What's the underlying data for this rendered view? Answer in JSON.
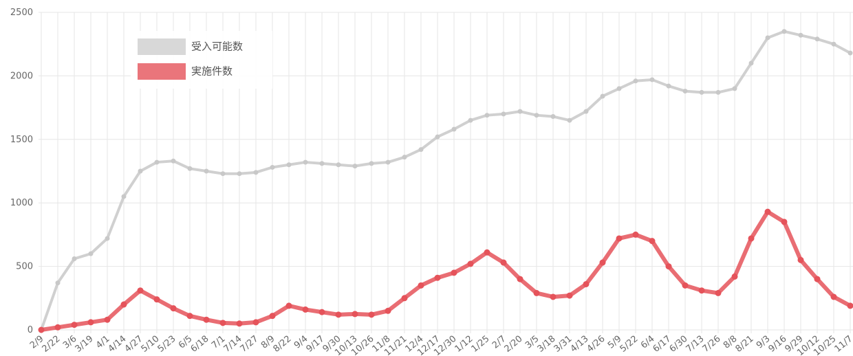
{
  "chart_data": {
    "type": "line",
    "categories": [
      "2/9",
      "2/22",
      "3/6",
      "3/19",
      "4/1",
      "4/14",
      "4/27",
      "5/10",
      "5/23",
      "6/5",
      "6/18",
      "7/1",
      "7/14",
      "7/27",
      "8/9",
      "8/22",
      "9/4",
      "9/17",
      "9/30",
      "10/13",
      "10/26",
      "11/8",
      "11/21",
      "12/4",
      "12/17",
      "12/30",
      "1/12",
      "1/25",
      "2/7",
      "2/20",
      "3/5",
      "3/18",
      "3/31",
      "4/13",
      "4/26",
      "5/9",
      "5/22",
      "6/4",
      "6/17",
      "6/30",
      "7/13",
      "7/26",
      "8/8",
      "8/21",
      "9/3",
      "9/16",
      "9/29",
      "10/12",
      "10/25",
      "11/7"
    ],
    "series": [
      {
        "name": "受入可能数",
        "color": "#c8c8c8",
        "values": [
          0,
          370,
          560,
          600,
          720,
          1050,
          1250,
          1320,
          1330,
          1270,
          1250,
          1230,
          1230,
          1240,
          1280,
          1300,
          1320,
          1310,
          1300,
          1290,
          1310,
          1320,
          1360,
          1420,
          1520,
          1580,
          1650,
          1690,
          1700,
          1720,
          1690,
          1680,
          1650,
          1720,
          1840,
          1900,
          1960,
          1970,
          1920,
          1880,
          1870,
          1870,
          1900,
          2100,
          2300,
          2350,
          2320,
          2290,
          2250,
          2180
        ]
      },
      {
        "name": "実施件数",
        "color": "#e5535a",
        "values": [
          0,
          20,
          40,
          60,
          80,
          200,
          310,
          240,
          170,
          110,
          80,
          55,
          50,
          60,
          110,
          190,
          160,
          140,
          120,
          125,
          120,
          150,
          250,
          350,
          410,
          450,
          520,
          610,
          530,
          400,
          290,
          260,
          270,
          360,
          530,
          720,
          750,
          700,
          500,
          350,
          310,
          290,
          420,
          720,
          930,
          850,
          550,
          400,
          260,
          190
        ]
      }
    ],
    "ylim": [
      0,
      2500
    ],
    "yticks": [
      0,
      500,
      1000,
      1500,
      2000,
      2500
    ],
    "grid": true,
    "legend": "top-left"
  }
}
